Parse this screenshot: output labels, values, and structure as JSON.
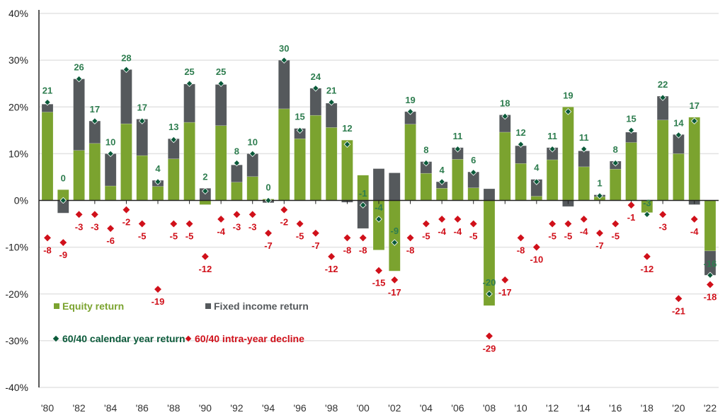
{
  "chart_data": {
    "type": "bar",
    "stacked": true,
    "title": "",
    "xlabel": "",
    "ylabel": "",
    "ylim": [
      -40,
      40
    ],
    "yticks": [
      "40%",
      "30%",
      "20%",
      "10%",
      "0%",
      "-10%",
      "-20%",
      "-30%",
      "-40%"
    ],
    "ytick_values": [
      40,
      30,
      20,
      10,
      0,
      -10,
      -20,
      -30,
      -40
    ],
    "grid": true,
    "legend_placement": "bottom-left",
    "colors": {
      "equity": "#7ba32f",
      "fixed_income": "#55595c",
      "calendar_marker": "#0b5a3a",
      "calendar_label": "#2e7d4f",
      "decline": "#d0101a"
    },
    "categories": [
      1980,
      1981,
      1982,
      1983,
      1984,
      1985,
      1986,
      1987,
      1988,
      1989,
      1990,
      1991,
      1992,
      1993,
      1994,
      1995,
      1996,
      1997,
      1998,
      1999,
      2000,
      2001,
      2002,
      2003,
      2004,
      2005,
      2006,
      2007,
      2008,
      2009,
      2010,
      2011,
      2012,
      2013,
      2014,
      2015,
      2016,
      2017,
      2018,
      2019,
      2020,
      2021,
      2022
    ],
    "xtick_labels": [
      "'80",
      "'82",
      "'84",
      "'86",
      "'88",
      "'90",
      "'92",
      "'94",
      "'96",
      "'98",
      "'00",
      "'02",
      "'04",
      "'06",
      "'08",
      "'10",
      "'12",
      "'14",
      "'16",
      "'18",
      "'20",
      "'22"
    ],
    "series": [
      {
        "name": "Equity return",
        "kind": "bar",
        "values": [
          18.9,
          2.3,
          10.7,
          12.2,
          3.1,
          16.4,
          9.6,
          3.0,
          8.9,
          16.7,
          -0.9,
          16.0,
          3.9,
          5.1,
          0.3,
          19.6,
          13.2,
          18.2,
          15.6,
          12.9,
          5.4,
          -10.6,
          -15.1,
          16.3,
          5.8,
          2.6,
          8.8,
          2.7,
          -22.5,
          14.6,
          7.9,
          0.9,
          8.7,
          20.0,
          7.2,
          0.8,
          6.7,
          12.4,
          -2.6,
          17.2,
          10.0,
          17.8,
          -10.8
        ]
      },
      {
        "name": "Fixed income return",
        "kind": "bar",
        "values": [
          1.7,
          -2.7,
          15.3,
          4.8,
          6.9,
          11.6,
          7.8,
          1.3,
          4.3,
          8.2,
          2.6,
          8.8,
          3.7,
          4.9,
          -0.5,
          10.4,
          2.2,
          5.8,
          5.2,
          -0.4,
          -6.0,
          6.8,
          5.9,
          2.7,
          2.5,
          1.4,
          2.5,
          3.4,
          2.5,
          3.7,
          3.8,
          3.6,
          2.6,
          -1.3,
          3.4,
          0.4,
          1.7,
          2.2,
          0.1,
          5.1,
          4.1,
          -0.9,
          -5.2
        ]
      },
      {
        "name": "60/40 calendar year return",
        "kind": "marker",
        "values": [
          21,
          0,
          26,
          17,
          10,
          28,
          17,
          4,
          13,
          25,
          2,
          25,
          8,
          10,
          0,
          30,
          15,
          24,
          21,
          12,
          -1,
          -4,
          -9,
          19,
          8,
          4,
          11,
          6,
          -20,
          18,
          12,
          4,
          11,
          19,
          11,
          1,
          8,
          15,
          -3,
          22,
          14,
          17,
          -16
        ]
      },
      {
        "name": "60/40 intra-year decline",
        "kind": "marker",
        "values": [
          -8,
          -9,
          -3,
          -3,
          -6,
          -2,
          -5,
          -19,
          -5,
          -5,
          -12,
          -4,
          -3,
          -3,
          -7,
          -2,
          -5,
          -7,
          -12,
          -8,
          -8,
          -15,
          -17,
          -8,
          -5,
          -4,
          -4,
          -5,
          -29,
          -17,
          -8,
          -10,
          -5,
          -5,
          -4,
          -7,
          -5,
          -1,
          -12,
          -3,
          -21,
          -4,
          -18
        ]
      }
    ],
    "return_labels": [
      "21",
      "0",
      "26",
      "17",
      "10",
      "28",
      "17",
      "4",
      "13",
      "25",
      "2",
      "25",
      "8",
      "10",
      "0",
      "30",
      "15",
      "24",
      "21",
      "12",
      "-1",
      "-4",
      "-9",
      "19",
      "8",
      "4",
      "11",
      "6",
      "-20",
      "18",
      "12",
      "4",
      "11",
      "19",
      "11",
      "1",
      "8",
      "15",
      "-3",
      "22",
      "14",
      "17",
      "-16"
    ],
    "decline_labels": [
      "-8",
      "-9",
      "-3",
      "-3",
      "-6",
      "-2",
      "-5",
      "-19",
      "-5",
      "-5",
      "-12",
      "-4",
      "-3",
      "-3",
      "-7",
      "-2",
      "-5",
      "-7",
      "-12",
      "-8",
      "-8",
      "-15",
      "-17",
      "-8",
      "-5",
      "-4",
      "-4",
      "-5",
      "-29",
      "-17",
      "-8",
      "-10",
      "-5",
      "-5",
      "-4",
      "-7",
      "-5",
      "-1",
      "-12",
      "-3",
      "-21",
      "-4",
      "-18"
    ],
    "legend": {
      "equity": "Equity return",
      "fixed_income": "Fixed income return",
      "calendar": "60/40 calendar year return",
      "decline": "60/40 intra-year decline"
    }
  }
}
